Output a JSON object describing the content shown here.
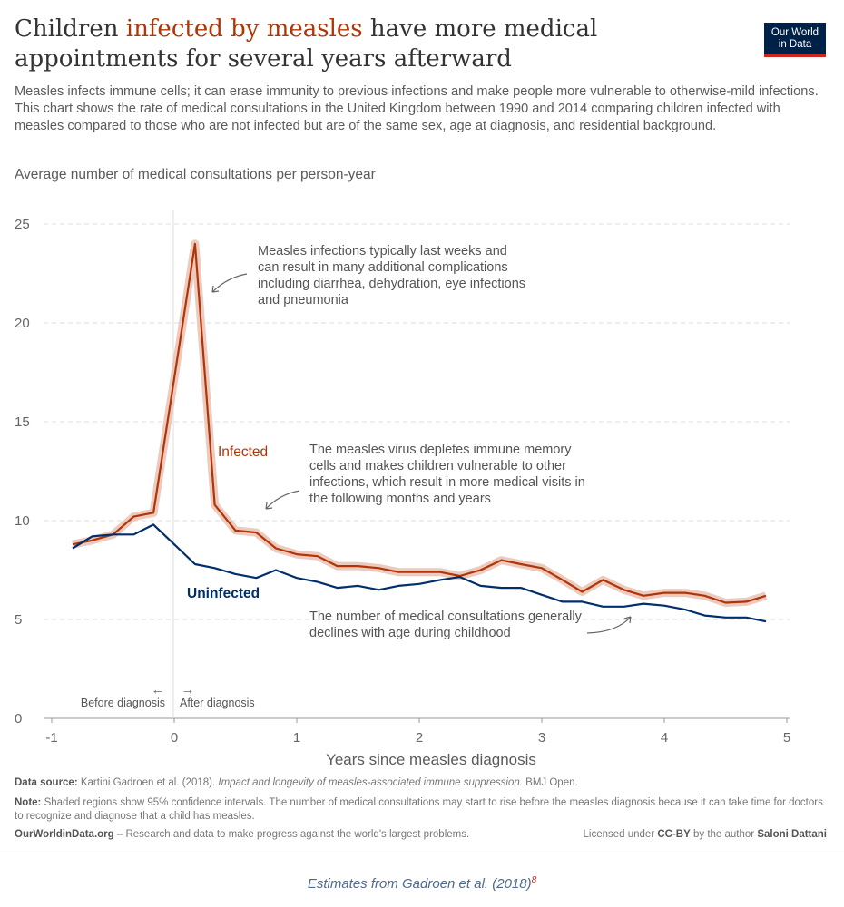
{
  "header": {
    "title_pre": "Children ",
    "title_highlight": "infected by measles",
    "title_post": " have more medical appointments for several years afterward",
    "subtitle": "Measles infects immune cells; it can erase immunity to previous infections and make people more vulnerable to otherwise-mild infections. This chart shows the rate of medical consultations in the United Kingdom between 1990 and 2014 comparing children infected with measles compared to those who are not infected but are of the same sex, age at diagnosis, and residential background.",
    "logo_line1": "Our World",
    "logo_line2": "in Data"
  },
  "chart_data": {
    "type": "line",
    "title": "Children infected by measles have more medical appointments for several years afterward",
    "ylabel": "Average number of medical consultations per person-year",
    "xlabel": "Years since measles diagnosis",
    "xlim": [
      -1,
      5
    ],
    "ylim": [
      0,
      25
    ],
    "x_ticks": [
      "-1",
      "0",
      "1",
      "2",
      "3",
      "4",
      "5"
    ],
    "y_ticks": [
      "0",
      "5",
      "10",
      "15",
      "20",
      "25"
    ],
    "grid": "horizontal dashed",
    "x": [
      -0.83,
      -0.67,
      -0.5,
      -0.33,
      -0.17,
      0,
      0.17,
      0.33,
      0.5,
      0.67,
      0.83,
      1,
      1.17,
      1.33,
      1.5,
      1.67,
      1.83,
      2,
      2.17,
      2.33,
      2.5,
      2.67,
      2.83,
      3,
      3.17,
      3.33,
      3.5,
      3.67,
      3.83,
      4,
      4.17,
      4.33,
      4.5,
      4.67,
      4.83
    ],
    "series": [
      {
        "name": "Infected",
        "color": "#b13507",
        "confidence_band": true,
        "values": [
          8.8,
          9.0,
          9.3,
          10.2,
          10.4,
          17.2,
          24.0,
          10.8,
          9.5,
          9.4,
          8.6,
          8.3,
          8.2,
          7.7,
          7.7,
          7.6,
          7.4,
          7.4,
          7.4,
          7.2,
          7.5,
          8.0,
          7.8,
          7.6,
          7.0,
          6.4,
          7.0,
          6.5,
          6.2,
          6.35,
          6.35,
          6.2,
          5.85,
          5.9,
          6.2
        ]
      },
      {
        "name": "Uninfected",
        "color": "#002f6c",
        "values": [
          8.6,
          9.2,
          9.3,
          9.3,
          9.8,
          8.8,
          7.8,
          7.6,
          7.3,
          7.1,
          7.5,
          7.1,
          6.9,
          6.6,
          6.7,
          6.5,
          6.7,
          6.8,
          7.0,
          7.15,
          6.7,
          6.6,
          6.6,
          6.25,
          5.9,
          5.9,
          5.65,
          5.65,
          5.8,
          5.7,
          5.5,
          5.2,
          5.1,
          5.1,
          4.9
        ]
      }
    ],
    "annotations": {
      "peak": "Measles infections typically last weeks and can result in many additional complications including diarrhea, dehydration, eye infections and pneumonia",
      "immune": "The measles virus depletes immune memory cells and makes children vulnerable to other infections, which result in more medical visits in the following months and years",
      "decline": "The number of medical consultations generally declines with age during childhood",
      "before": "Before diagnosis",
      "after": "After diagnosis",
      "before_arrow": "←",
      "after_arrow": "→"
    }
  },
  "footer": {
    "source_label": "Data source:",
    "source_text": " Kartini Gadroen et al. (2018). ",
    "source_italic": "Impact and longevity of measles-associated immune suppression.",
    "source_end": " BMJ Open.",
    "note_label": "Note:",
    "note_text": " Shaded regions show 95% confidence intervals. The number of medical consultations may start to rise before the measles diagnosis because it can take time for doctors to recognize and diagnose that a child has measles.",
    "site": "OurWorldinData.org",
    "tagline": " – Research and data to make progress against the world's largest problems.",
    "license_pre": "Licensed under ",
    "license": "CC-BY",
    "license_mid": " by the author ",
    "author": "Saloni Dattani"
  },
  "caption": {
    "text": "Estimates from Gadroen et al. (2018)",
    "ref": "8"
  }
}
